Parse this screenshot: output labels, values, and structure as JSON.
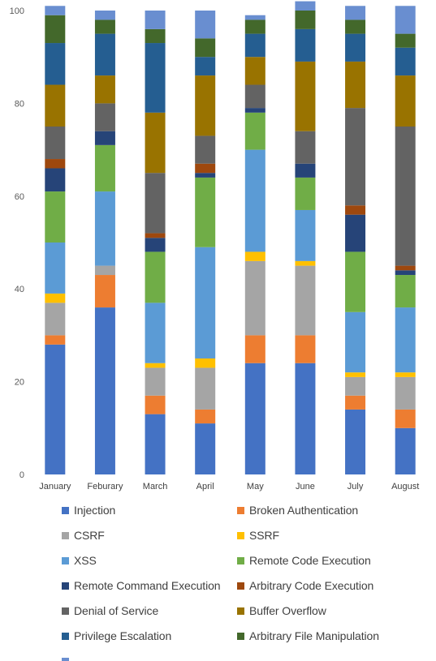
{
  "chart_data": {
    "type": "bar",
    "stacked": true,
    "title": "",
    "xlabel": "",
    "ylabel": "",
    "ylim": [
      0,
      100
    ],
    "yticks": [
      "0",
      "20",
      "40",
      "60",
      "80",
      "100"
    ],
    "grid": false,
    "legend_position": "bottom",
    "categories": [
      "January",
      "Feburary",
      "March",
      "April",
      "May",
      "June",
      "July",
      "August"
    ],
    "series": [
      {
        "name": "Injection",
        "color": "#4472c4",
        "values": [
          28,
          36,
          13,
          11,
          24,
          24,
          14,
          10
        ]
      },
      {
        "name": "Broken Authentication",
        "color": "#ed7d31",
        "values": [
          2,
          7,
          4,
          3,
          6,
          6,
          3,
          4
        ]
      },
      {
        "name": "CSRF",
        "color": "#a5a5a5",
        "values": [
          7,
          2,
          6,
          9,
          16,
          15,
          4,
          7
        ]
      },
      {
        "name": "SSRF",
        "color": "#ffc000",
        "values": [
          2,
          0,
          1,
          2,
          2,
          1,
          1,
          1
        ]
      },
      {
        "name": "XSS",
        "color": "#5b9bd5",
        "values": [
          11,
          16,
          13,
          24,
          22,
          11,
          13,
          14
        ]
      },
      {
        "name": "Remote Code Execution",
        "color": "#70ad47",
        "values": [
          11,
          10,
          11,
          15,
          8,
          7,
          13,
          7
        ]
      },
      {
        "name": "Remote Command Execution",
        "color": "#264478",
        "values": [
          5,
          3,
          3,
          1,
          1,
          3,
          8,
          1
        ]
      },
      {
        "name": "Arbitrary Code Execution",
        "color": "#9e480e",
        "values": [
          2,
          0,
          1,
          2,
          0,
          0,
          2,
          1
        ]
      },
      {
        "name": "Denial of Service",
        "color": "#636363",
        "values": [
          7,
          6,
          13,
          6,
          5,
          7,
          21,
          30
        ]
      },
      {
        "name": "Buffer Overflow",
        "color": "#997300",
        "values": [
          9,
          6,
          13,
          13,
          6,
          15,
          10,
          11
        ]
      },
      {
        "name": "Privilege Escalation",
        "color": "#255e91",
        "values": [
          9,
          9,
          15,
          4,
          5,
          7,
          6,
          6
        ]
      },
      {
        "name": "Arbitrary File Manipulation",
        "color": "#43682b",
        "values": [
          6,
          3,
          3,
          4,
          3,
          4,
          3,
          3
        ]
      },
      {
        "name": "",
        "color": "#698ed0",
        "values": [
          2,
          2,
          4,
          6,
          1,
          2,
          3,
          6
        ]
      }
    ]
  }
}
